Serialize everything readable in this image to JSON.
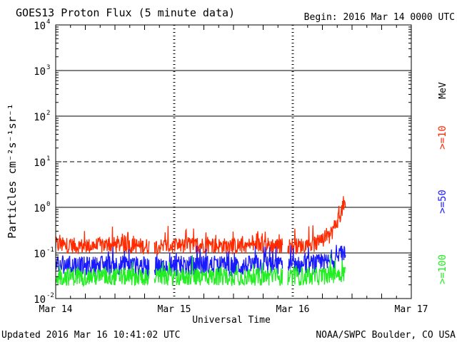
{
  "header": {
    "title": "GOES13 Proton Flux (5 minute data)",
    "begin": "Begin: 2016 Mar 14 0000 UTC"
  },
  "footer": {
    "updated": "Updated 2016 Mar 16 10:41:02 UTC",
    "credit": "NOAA/SWPC Boulder, CO USA"
  },
  "legend": {
    "unit": "MeV",
    "items": [
      {
        "label": ">=10",
        "color": "#ff2a00"
      },
      {
        "label": ">=50",
        "color": "#1a1aff"
      },
      {
        "label": ">=100",
        "color": "#22ee22"
      }
    ]
  },
  "chart_data": {
    "type": "line",
    "title": "GOES13 Proton Flux (5 minute data)",
    "xlabel": "Universal Time",
    "ylabel": "Particles cm⁻²s⁻¹sr⁻¹",
    "yscale": "log",
    "ylim": [
      0.01,
      10000
    ],
    "xlim": [
      "2016-03-14 00:00",
      "2016-03-17 00:00"
    ],
    "x_ticks": [
      "Mar 14",
      "Mar 15",
      "Mar 16",
      "Mar 17"
    ],
    "y_ticks": [
      {
        "base": "10",
        "exp": "-2"
      },
      {
        "base": "10",
        "exp": "-1"
      },
      {
        "base": "10",
        "exp": "0"
      },
      {
        "base": "10",
        "exp": "1"
      },
      {
        "base": "10",
        "exp": "2"
      },
      {
        "base": "10",
        "exp": "3"
      },
      {
        "base": "10",
        "exp": "4"
      }
    ],
    "reference_lines": [
      {
        "value": 0.1,
        "style": "solid"
      },
      {
        "value": 1,
        "style": "solid"
      },
      {
        "value": 10,
        "style": "dashed"
      },
      {
        "value": 100,
        "style": "solid"
      },
      {
        "value": 1000,
        "style": "solid"
      }
    ],
    "data_gaps": [
      {
        "start": "2016-03-14 19:00",
        "end": "2016-03-14 20:00"
      },
      {
        "start": "2016-03-15 22:00",
        "end": "2016-03-15 23:00"
      }
    ],
    "series": [
      {
        "name": ">=10 MeV",
        "color": "#ff2a00",
        "x": [
          "2016-03-14 00:00",
          "2016-03-14 06:00",
          "2016-03-14 12:00",
          "2016-03-14 18:00",
          "2016-03-15 00:00",
          "2016-03-15 06:00",
          "2016-03-15 12:00",
          "2016-03-15 18:00",
          "2016-03-16 00:00",
          "2016-03-16 04:00",
          "2016-03-16 07:00",
          "2016-03-16 08:00",
          "2016-03-16 09:00",
          "2016-03-16 10:00",
          "2016-03-16 10:40"
        ],
        "y": [
          0.15,
          0.14,
          0.15,
          0.14,
          0.14,
          0.15,
          0.14,
          0.15,
          0.14,
          0.15,
          0.2,
          0.3,
          0.5,
          0.9,
          1.1
        ]
      },
      {
        "name": ">=50 MeV",
        "color": "#1a1aff",
        "x": [
          "2016-03-14 00:00",
          "2016-03-14 06:00",
          "2016-03-14 12:00",
          "2016-03-14 18:00",
          "2016-03-15 00:00",
          "2016-03-15 06:00",
          "2016-03-15 12:00",
          "2016-03-15 18:00",
          "2016-03-16 00:00",
          "2016-03-16 04:00",
          "2016-03-16 07:00",
          "2016-03-16 08:00",
          "2016-03-16 09:00",
          "2016-03-16 10:00",
          "2016-03-16 10:40"
        ],
        "y": [
          0.055,
          0.05,
          0.055,
          0.05,
          0.05,
          0.055,
          0.05,
          0.055,
          0.05,
          0.055,
          0.06,
          0.07,
          0.08,
          0.09,
          0.09
        ]
      },
      {
        "name": ">=100 MeV",
        "color": "#22ee22",
        "x": [
          "2016-03-14 00:00",
          "2016-03-14 06:00",
          "2016-03-14 12:00",
          "2016-03-14 18:00",
          "2016-03-15 00:00",
          "2016-03-15 06:00",
          "2016-03-15 12:00",
          "2016-03-15 18:00",
          "2016-03-16 00:00",
          "2016-03-16 04:00",
          "2016-03-16 07:00",
          "2016-03-16 08:00",
          "2016-03-16 09:00",
          "2016-03-16 10:00",
          "2016-03-16 10:40"
        ],
        "y": [
          0.03,
          0.03,
          0.03,
          0.03,
          0.03,
          0.03,
          0.03,
          0.03,
          0.03,
          0.03,
          0.032,
          0.034,
          0.035,
          0.036,
          0.036
        ]
      }
    ]
  }
}
